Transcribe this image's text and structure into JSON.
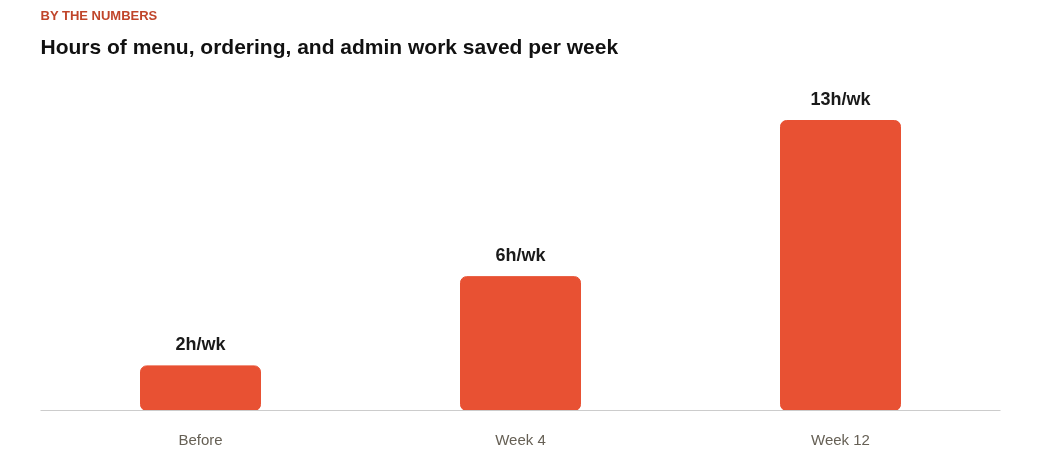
{
  "chart_data": {
    "type": "bar",
    "subtitle": "BY THE NUMBERS",
    "title": "Hours of menu, ordering, and admin work saved per week",
    "categories": [
      "Before",
      "Week 4",
      "Week 12"
    ],
    "values": [
      2,
      6,
      13
    ],
    "color": "#e85133",
    "value_labels": [
      "2h/wk",
      "6h/wk",
      "13h/wk"
    ],
    "grid": false
  }
}
